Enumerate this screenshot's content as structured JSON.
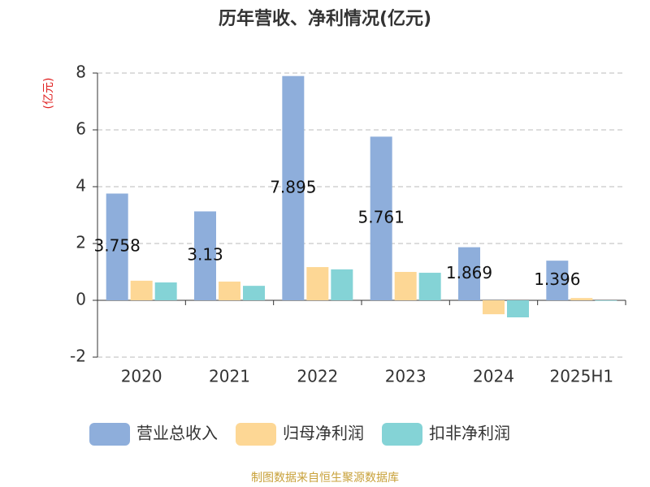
{
  "chart_data": {
    "type": "bar",
    "title": "历年营收、净利情况(亿元)",
    "y_label": "(亿元)",
    "source": "制图数据来自恒生聚源数据库",
    "categories": [
      "2020",
      "2021",
      "2022",
      "2023",
      "2024",
      "2025H1"
    ],
    "series": [
      {
        "name": "营业总收入",
        "color": "#8eaedb",
        "values": [
          3.758,
          3.13,
          7.895,
          5.761,
          1.869,
          1.396
        ],
        "show_labels": true
      },
      {
        "name": "归母净利润",
        "color": "#fdd795",
        "values": [
          0.69,
          0.66,
          1.17,
          1.0,
          -0.49,
          0.08
        ]
      },
      {
        "name": "扣非净利润",
        "color": "#84d3d6",
        "values": [
          0.63,
          0.51,
          1.09,
          0.97,
          -0.6,
          -0.02
        ]
      }
    ],
    "ylim": [
      -2,
      8
    ],
    "yticks": [
      -2,
      0,
      2,
      4,
      6,
      8
    ],
    "grid": true
  }
}
